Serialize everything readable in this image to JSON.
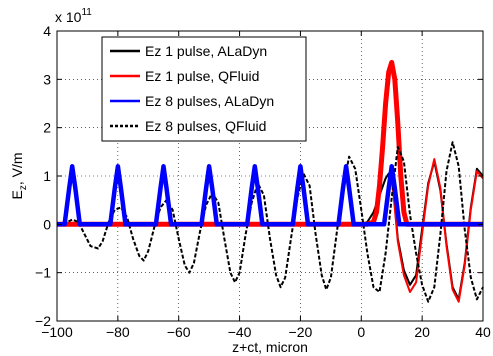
{
  "chart_data": {
    "type": "line",
    "title": "",
    "xlabel": "z+ct, micron",
    "ylabel": "E_z, V/m",
    "ylabel_main": "E",
    "ylabel_sub": "z",
    "ylabel_rest": ", V/m",
    "multiplier": {
      "base": "x 10",
      "exponent": "11"
    },
    "xlim": [
      -100,
      40
    ],
    "ylim": [
      -2,
      4
    ],
    "xticks": [
      -100,
      -80,
      -60,
      -40,
      -20,
      0,
      20,
      40
    ],
    "xtick_labels": [
      "−100",
      "−80",
      "−60",
      "−40",
      "−20",
      "0",
      "20",
      "40"
    ],
    "yticks": [
      -2,
      -1,
      0,
      1,
      2,
      3,
      4
    ],
    "ytick_labels": [
      "−2",
      "−1",
      "0",
      "1",
      "2",
      "3",
      "4"
    ],
    "grid": true,
    "grid_style": "dotted",
    "legend_position": "top-center",
    "y_unit_scale": "1e11 V/m",
    "series": [
      {
        "name": "Ez 1 pulse, ALaDyn",
        "color": "#000000",
        "line": "solid",
        "x": [
          -100,
          0,
          2,
          4,
          6,
          8,
          9,
          10,
          11,
          12,
          14,
          16,
          18,
          20,
          22,
          24,
          26,
          28,
          30,
          32,
          34,
          36,
          38,
          40
        ],
        "y": [
          0,
          0,
          0.05,
          0.25,
          0.6,
          0.95,
          1.05,
          0.95,
          0.4,
          -0.3,
          -0.95,
          -1.25,
          -1.05,
          -0.1,
          0.85,
          1.3,
          0.7,
          -0.4,
          -1.3,
          -1.55,
          -0.8,
          0.35,
          1.15,
          1.0
        ]
      },
      {
        "name": "Ez 1 pulse, QFluid",
        "color": "#ff0000",
        "line": "solid",
        "x": [
          -100,
          0,
          2,
          4,
          5,
          6,
          7,
          8,
          9,
          10,
          11,
          12,
          13,
          14,
          15,
          16,
          18,
          20,
          22,
          24,
          26,
          28,
          30,
          32,
          34,
          36,
          38,
          40
        ],
        "y": [
          0,
          0,
          0,
          0.05,
          0.25,
          0.8,
          1.6,
          2.5,
          3.15,
          3.35,
          3.0,
          2.1,
          1.0,
          0.25,
          0,
          0,
          0,
          0,
          0,
          0,
          0,
          0,
          0,
          0,
          0,
          0,
          0,
          0
        ],
        "extra_lines": [
          {
            "x": [
              10,
              12,
              14,
              16,
              18,
              20,
              22,
              24,
              26,
              28,
              30,
              32,
              34,
              36,
              38,
              40
            ],
            "y": [
              1.05,
              -0.35,
              -1.05,
              -1.4,
              -1.2,
              -0.2,
              0.8,
              1.35,
              0.75,
              -0.45,
              -1.35,
              -1.6,
              -0.85,
              0.3,
              1.1,
              0.95
            ]
          }
        ]
      },
      {
        "name": "Ez 8 pulses, ALaDyn",
        "color": "#0000ff",
        "line": "solid",
        "x": [
          -100,
          -97.5,
          -96,
          -95,
          -94,
          -92.5,
          -90,
          -82.5,
          -81,
          -80,
          -79,
          -77.5,
          -75,
          -67.5,
          -66,
          -65,
          -64,
          -62.5,
          -60,
          -52.5,
          -51,
          -50,
          -49,
          -47.5,
          -45,
          -37.5,
          -36,
          -35,
          -34,
          -32.5,
          -30,
          -22.5,
          -21,
          -20,
          -19,
          -17.5,
          -15,
          -7.5,
          -6,
          -5,
          -4,
          -2.5,
          0,
          7.5,
          9,
          10,
          11,
          12.5,
          15,
          40
        ],
        "y": [
          0,
          0,
          0.75,
          1.2,
          0.75,
          0,
          0,
          0,
          0.75,
          1.2,
          0.75,
          0,
          0,
          0,
          0.75,
          1.2,
          0.75,
          0,
          0,
          0,
          0.75,
          1.2,
          0.75,
          0,
          0,
          0,
          0.75,
          1.2,
          0.75,
          0,
          0,
          0,
          0.75,
          1.2,
          0.75,
          0,
          0,
          0,
          0.75,
          1.2,
          0.75,
          0,
          0,
          0,
          0.75,
          1.2,
          0.75,
          0,
          0,
          0
        ]
      },
      {
        "name": "Ez 8 pulses, QFluid",
        "color": "#000000",
        "line": "dashed",
        "x": [
          -100,
          -97,
          -95,
          -93,
          -91,
          -89,
          -86.5,
          -85,
          -83,
          -81,
          -79,
          -77,
          -75,
          -73,
          -71.5,
          -70,
          -68,
          -66,
          -64,
          -62,
          -60,
          -58,
          -56.5,
          -55,
          -53,
          -51,
          -49,
          -47,
          -45,
          -43,
          -41.5,
          -40,
          -38,
          -36,
          -34,
          -32,
          -30,
          -28,
          -26.5,
          -25,
          -23,
          -21,
          -19,
          -17,
          -15,
          -13,
          -11.5,
          -10,
          -8,
          -6,
          -4,
          -2,
          0,
          2,
          4,
          6,
          8,
          10,
          12,
          14,
          16,
          18,
          20,
          22,
          24,
          26,
          28,
          30,
          32,
          34,
          36,
          38,
          40
        ],
        "y": [
          0,
          0.03,
          0.1,
          0.05,
          -0.2,
          -0.45,
          -0.5,
          -0.35,
          0.05,
          0.3,
          0.35,
          0.15,
          -0.3,
          -0.65,
          -0.75,
          -0.55,
          -0.05,
          0.35,
          0.5,
          0.3,
          -0.3,
          -0.85,
          -1.0,
          -0.8,
          -0.15,
          0.4,
          0.65,
          0.45,
          -0.3,
          -1.0,
          -1.2,
          -1.0,
          -0.2,
          0.45,
          0.85,
          0.6,
          -0.3,
          -1.05,
          -1.3,
          -1.1,
          -0.25,
          0.55,
          1.05,
          0.8,
          -0.2,
          -1.05,
          -1.35,
          -1.1,
          -0.15,
          0.75,
          1.4,
          1.15,
          0.3,
          -0.6,
          -1.3,
          -1.4,
          -0.6,
          0.55,
          1.6,
          1.3,
          0.2,
          -0.6,
          -1.25,
          -1.6,
          -1.3,
          -0.2,
          1.1,
          1.7,
          1.2,
          -0.1,
          -1.1,
          -1.55,
          -1.3
        ]
      }
    ]
  }
}
